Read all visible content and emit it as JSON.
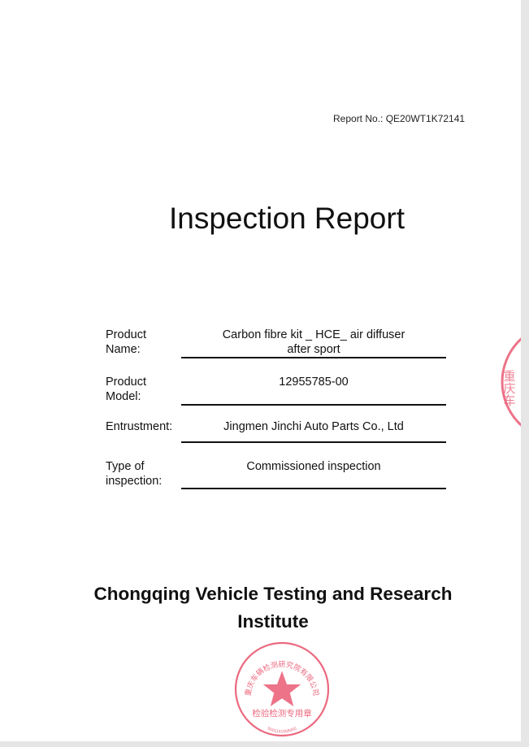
{
  "header": {
    "report_no": "Report No.: QE20WT1K72141"
  },
  "title": "Inspection Report",
  "fields": [
    {
      "label": "Product Name:",
      "value_line1": "Carbon fibre kit _ HCE_ air diffuser",
      "value_line2": "after sport"
    },
    {
      "label": "Product Model:",
      "value_line1": "12955785-00"
    },
    {
      "label": "Entrustment:",
      "value_line1": "Jingmen Jinchi Auto Parts Co., Ltd"
    },
    {
      "label": "Type of inspection:",
      "value_line1": "Commissioned inspection"
    }
  ],
  "institute": {
    "line1": "Chongqing Vehicle Testing and Research",
    "line2": "Institute"
  },
  "stamp": {
    "color": "#e8506a",
    "arc_text": "重庆车辆检测研究院有限公司",
    "center_text": "检验检测专用章",
    "number": "5001141068400"
  }
}
